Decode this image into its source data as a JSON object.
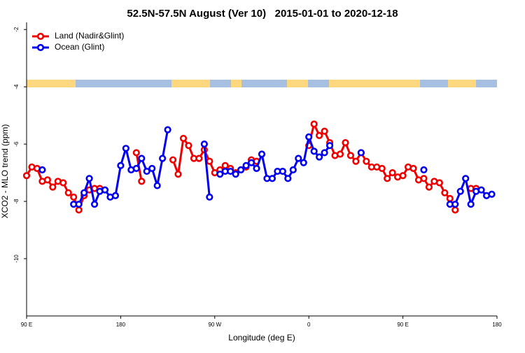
{
  "chart_data": {
    "type": "line",
    "title": "52.5N-57.5N August (Ver 10)   2015-01-01 to 2020-12-18",
    "x_label": "Longitude (deg E)",
    "y_label": "XCO2 - MLO trend (ppm)",
    "xlim": [
      90,
      540
    ],
    "ylim": [
      -12,
      -1.75
    ],
    "xticks": [
      {
        "value": 90,
        "label": "90 E"
      },
      180,
      {
        "value": 270,
        "label": "90 W"
      },
      {
        "value": 360,
        "label": "0"
      },
      {
        "value": 450,
        "label": "90 E"
      },
      {
        "value": 540,
        "label": "180"
      }
    ],
    "yticks": [
      -2,
      -4,
      -6,
      -8,
      -10
    ],
    "grid": false,
    "legend": "top-left",
    "x": [
      90,
      95,
      100,
      105,
      110,
      115,
      120,
      125,
      130,
      135,
      140,
      145,
      150,
      155,
      160,
      165,
      170,
      175,
      180,
      185,
      190,
      195,
      200,
      205,
      210,
      215,
      220,
      225,
      230,
      235,
      240,
      245,
      250,
      255,
      260,
      265,
      270,
      275,
      280,
      285,
      290,
      295,
      300,
      305,
      310,
      315,
      320,
      325,
      330,
      335,
      340,
      345,
      350,
      355,
      360,
      365,
      370,
      375,
      380,
      385,
      390,
      395,
      400,
      405,
      410,
      415,
      420,
      425,
      430,
      435,
      440,
      445,
      450,
      455,
      460,
      465,
      470,
      475,
      480,
      485,
      490,
      495,
      500,
      505,
      510,
      515,
      520,
      525,
      530,
      535,
      540
    ],
    "series": [
      {
        "name": "Land (Nadir&Glint)",
        "color": "#ee0000",
        "values": [
          -7.1,
          -6.8,
          -6.85,
          -7.3,
          -7.25,
          -7.5,
          -7.3,
          -7.35,
          -7.7,
          -7.85,
          -8.3,
          -7.8,
          -7.6,
          -7.55,
          -7.55,
          null,
          null,
          null,
          null,
          null,
          null,
          -6.3,
          -7.3,
          null,
          null,
          null,
          null,
          null,
          -6.55,
          -7.05,
          -5.8,
          -6.05,
          -6.5,
          -6.5,
          -6.2,
          -6.6,
          -7.0,
          -6.9,
          -6.75,
          -6.85,
          -7.0,
          -6.9,
          -6.8,
          -6.55,
          -6.6,
          null,
          null,
          null,
          null,
          null,
          null,
          null,
          null,
          null,
          -6.05,
          -5.3,
          -5.7,
          -5.55,
          -5.95,
          -6.4,
          -6.35,
          -5.95,
          -6.4,
          -6.6,
          -6.3,
          -6.6,
          -6.8,
          -6.8,
          -6.85,
          -7.2,
          -7.0,
          -7.15,
          -7.1,
          -6.8,
          -6.85,
          -7.25,
          -7.2,
          -7.5,
          -7.3,
          -7.35,
          -7.7,
          -7.9,
          -8.3,
          null,
          null,
          -7.55,
          -7.55,
          null,
          null,
          null,
          null
        ]
      },
      {
        "name": "Ocean (Glint)",
        "color": "#0000ee",
        "values": [
          null,
          null,
          null,
          -6.9,
          null,
          null,
          null,
          null,
          null,
          -8.1,
          -8.1,
          -7.7,
          -7.2,
          -8.1,
          -7.65,
          -7.6,
          -7.85,
          -7.8,
          -6.75,
          -6.15,
          -6.9,
          -6.85,
          -6.5,
          -6.95,
          -6.85,
          -7.45,
          -6.5,
          -5.5,
          null,
          null,
          null,
          null,
          null,
          null,
          -6.0,
          -7.85,
          null,
          -7.05,
          -6.95,
          -6.95,
          -7.05,
          -6.9,
          -6.75,
          -6.65,
          -6.85,
          -6.35,
          -7.2,
          -7.2,
          -6.95,
          -6.95,
          -7.2,
          -6.9,
          -6.5,
          -6.65,
          -5.75,
          -6.25,
          -6.45,
          -6.3,
          -6.05,
          null,
          null,
          null,
          null,
          null,
          -6.3,
          null,
          null,
          null,
          null,
          null,
          null,
          null,
          null,
          null,
          null,
          null,
          -6.9,
          null,
          null,
          null,
          null,
          -8.1,
          -8.1,
          -7.65,
          -7.2,
          -8.1,
          -7.65,
          -7.6,
          -7.8,
          -7.75,
          null
        ]
      }
    ]
  }
}
